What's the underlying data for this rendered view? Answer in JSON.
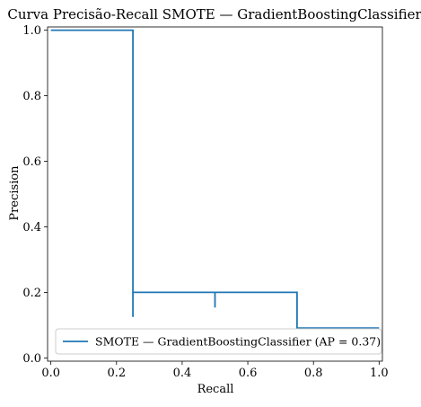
{
  "chart_data": {
    "type": "line",
    "title": "Curva Precisão-Recall SMOTE — GradientBoostingClassifier",
    "xlabel": "Recall",
    "ylabel": "Precision",
    "xlim": [
      -0.01,
      1.01
    ],
    "ylim": [
      -0.01,
      1.01
    ],
    "x_ticks": [
      "0.0",
      "0.2",
      "0.4",
      "0.6",
      "0.8",
      "1.0"
    ],
    "y_ticks": [
      "0.0",
      "0.2",
      "0.4",
      "0.6",
      "0.8",
      "1.0"
    ],
    "grid": false,
    "legend": {
      "position": "lower-right",
      "entries": [
        "SMOTE — GradientBoostingClassifier (AP = 0.37)"
      ]
    },
    "series": [
      {
        "color": "#1f77b4",
        "step": "post",
        "x": [
          0.0,
          0.25,
          0.25,
          0.25,
          0.25,
          0.5,
          0.5,
          0.5,
          0.5,
          0.75,
          0.75,
          1.0
        ],
        "y": [
          1.0,
          1.0,
          0.125,
          0.2,
          0.2,
          0.2,
          0.154,
          0.2,
          0.2,
          0.2,
          0.091,
          0.091
        ]
      }
    ]
  }
}
